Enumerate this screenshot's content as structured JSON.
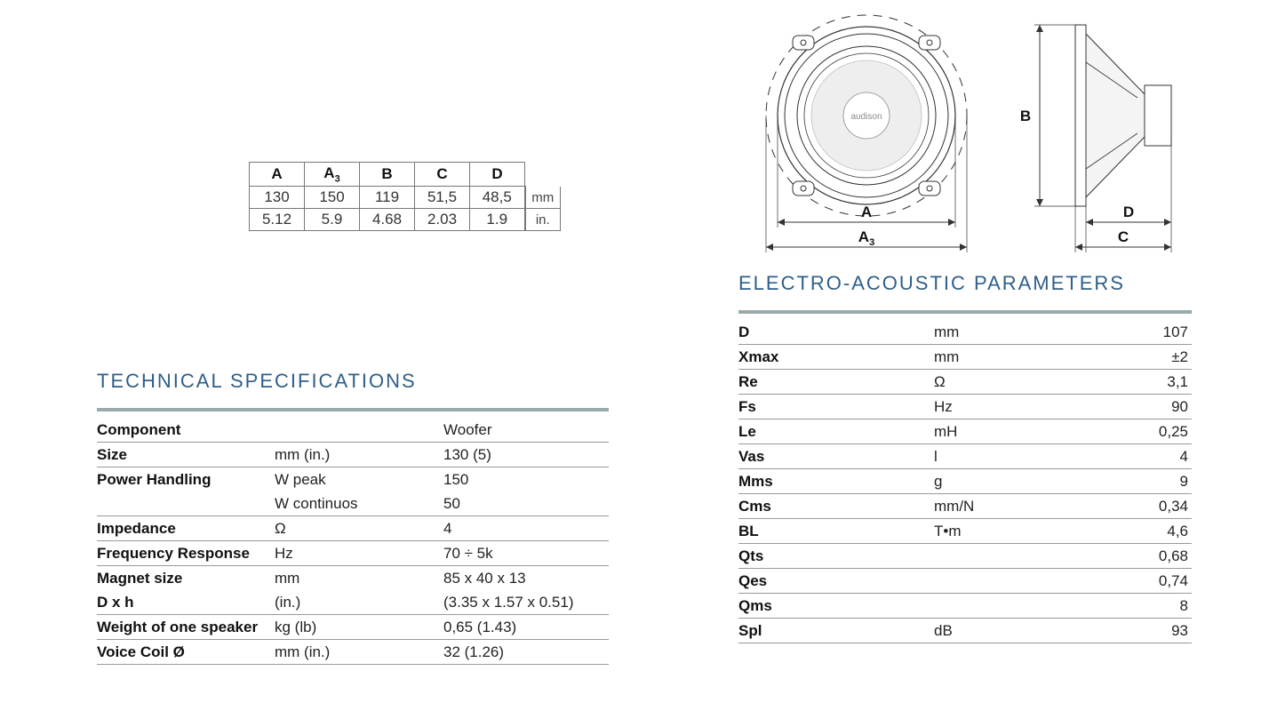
{
  "brand_text": "audison",
  "dim_labels": {
    "B_side": "B",
    "D_side": "D",
    "C_side": "C",
    "A_front": "A",
    "A3_front": "A"
  },
  "dimensions": {
    "headers": [
      "A",
      "A₃",
      "B",
      "C",
      "D"
    ],
    "rows": [
      {
        "values": [
          "130",
          "150",
          "119",
          "51,5",
          "48,5"
        ],
        "unit": "mm"
      },
      {
        "values": [
          "5.12",
          "5.9",
          "4.68",
          "2.03",
          "1.9"
        ],
        "unit": "in."
      }
    ]
  },
  "tech_specs": {
    "title": "TECHNICAL SPECIFICATIONS",
    "rows": [
      {
        "label": "Component",
        "sub": "",
        "val": "Woofer"
      },
      {
        "label": "Size",
        "sub": "mm (in.)",
        "val": "130 (5)"
      },
      {
        "label": "Power Handling",
        "sub": "W peak",
        "val": "150",
        "cont": true
      },
      {
        "label": "",
        "sub": "W continuos",
        "val": "50"
      },
      {
        "label": "Impedance",
        "sub": "Ω",
        "val": "4"
      },
      {
        "label": "Frequency Response",
        "sub": "Hz",
        "val": "70 ÷ 5k"
      },
      {
        "label": "Magnet size",
        "sub": "mm",
        "val": "85 x 40 x 13",
        "cont": true
      },
      {
        "label": "D x h",
        "sub": "(in.)",
        "val": "(3.35 x 1.57 x 0.51)"
      },
      {
        "label": "Weight of one speaker",
        "sub": "kg (lb)",
        "val": "0,65 (1.43)"
      },
      {
        "label": "Voice Coil Ø",
        "sub": "mm (in.)",
        "val": "32 (1.26)"
      }
    ]
  },
  "params": {
    "title": "ELECTRO-ACOUSTIC PARAMETERS",
    "rows": [
      {
        "p": "D",
        "u": "mm",
        "v": "107"
      },
      {
        "p": "Xmax",
        "u": "mm",
        "v": "±2"
      },
      {
        "p": "Re",
        "u": "Ω",
        "v": "3,1"
      },
      {
        "p": "Fs",
        "u": "Hz",
        "v": "90"
      },
      {
        "p": "Le",
        "u": "mH",
        "v": "0,25"
      },
      {
        "p": "Vas",
        "u": "l",
        "v": "4"
      },
      {
        "p": "Mms",
        "u": "g",
        "v": "9"
      },
      {
        "p": "Cms",
        "u": "mm/N",
        "v": "0,34"
      },
      {
        "p": "BL",
        "u": "T•m",
        "v": "4,6"
      },
      {
        "p": "Qts",
        "u": "",
        "v": "0,68"
      },
      {
        "p": "Qes",
        "u": "",
        "v": "0,74"
      },
      {
        "p": "Qms",
        "u": "",
        "v": "8"
      },
      {
        "p": "Spl",
        "u": "dB",
        "v": "93"
      }
    ]
  },
  "colors": {
    "heading": "#2f5f8a",
    "rule": "#9aa",
    "border": "#999",
    "text": "#1a1a1a"
  }
}
